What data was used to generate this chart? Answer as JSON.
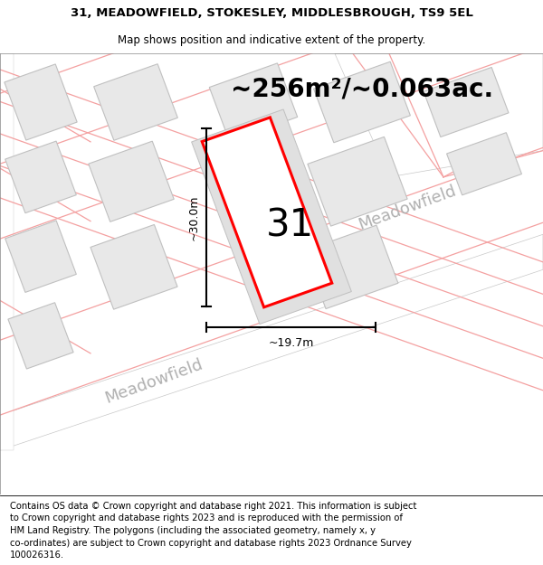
{
  "title_line1": "31, MEADOWFIELD, STOKESLEY, MIDDLESBROUGH, TS9 5EL",
  "title_line2": "Map shows position and indicative extent of the property.",
  "area_text": "~256m²/~0.063ac.",
  "number_label": "31",
  "dim_height": "~30.0m",
  "dim_width": "~19.7m",
  "street_label_lower": "Meadowfield",
  "street_label_upper": "Meadowfield",
  "footer_lines": [
    "Contains OS data © Crown copyright and database right 2021. This information is subject",
    "to Crown copyright and database rights 2023 and is reproduced with the permission of",
    "HM Land Registry. The polygons (including the associated geometry, namely x, y",
    "co-ordinates) are subject to Crown copyright and database rights 2023 Ordnance Survey",
    "100026316."
  ],
  "map_bg": "#f5f5f5",
  "road_fill": "#ffffff",
  "road_edge": "#c8c8c8",
  "building_fill": "#e8e8e8",
  "building_edge": "#c0c0c0",
  "plot_fill": "#ffffff",
  "plot_edge": "#ff0000",
  "pink": "#f4a0a0",
  "gray_text": "#b0b0b0",
  "black": "#000000",
  "title_fs": 9.5,
  "subtitle_fs": 8.5,
  "area_fs": 20,
  "number_fs": 30,
  "dim_fs": 9,
  "street_fs": 13,
  "footer_fs": 7.2
}
